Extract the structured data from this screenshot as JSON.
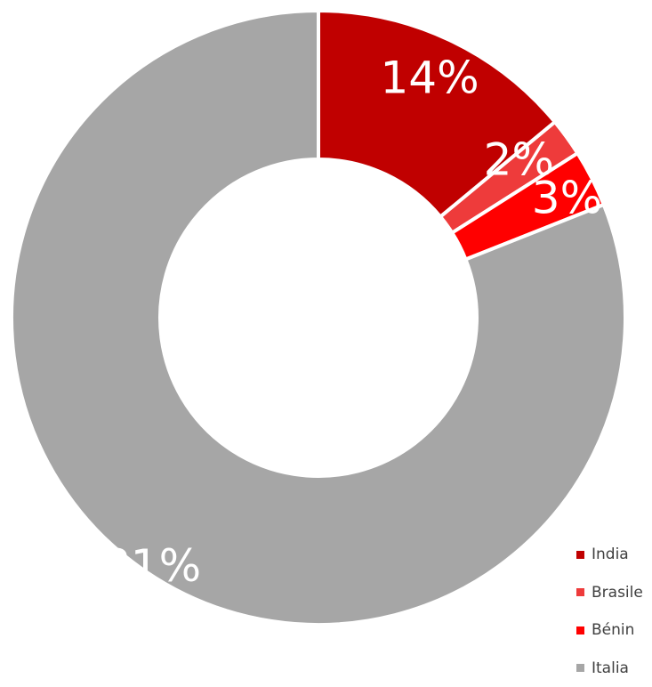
{
  "chart_data": {
    "type": "pie",
    "variant": "donut",
    "title": "",
    "slices": [
      {
        "label": "India",
        "value": 14,
        "display": "14%",
        "color": "#C00000"
      },
      {
        "label": "Brasile",
        "value": 2,
        "display": "2%",
        "color": "#EE3B3B"
      },
      {
        "label": "Bénin",
        "value": 3,
        "display": "3%",
        "color": "#FF0000"
      },
      {
        "label": "Italia",
        "value": 81,
        "display": "81%",
        "color": "#A6A6A6"
      }
    ],
    "legend_position": "bottom-right"
  }
}
